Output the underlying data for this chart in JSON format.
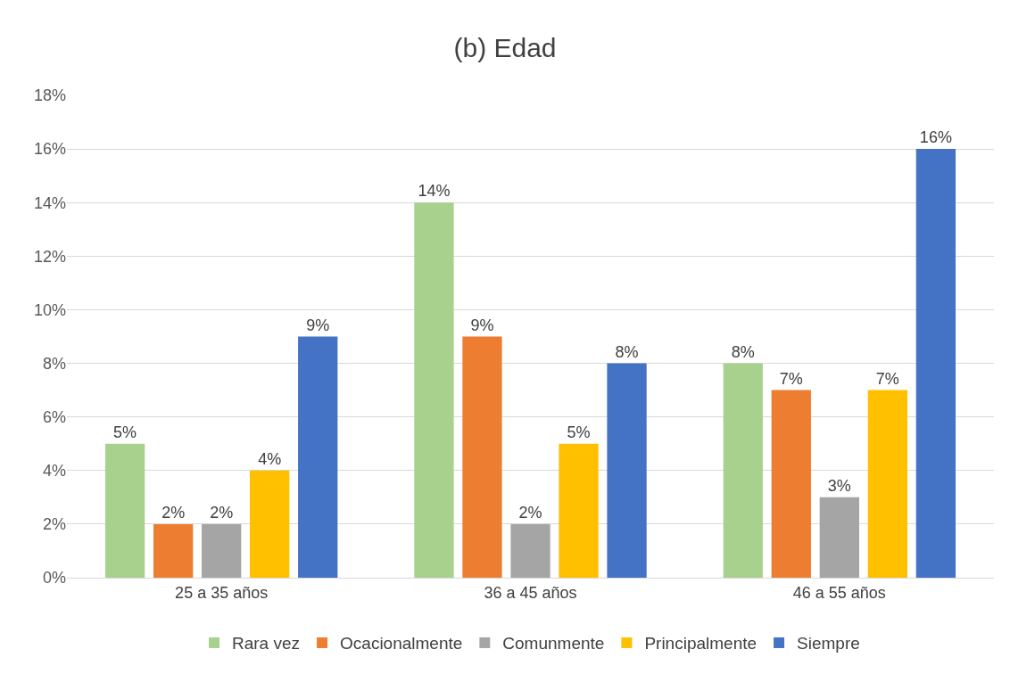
{
  "chart_data": {
    "type": "bar",
    "title": "(b) Edad",
    "categories": [
      "25 a 35 años",
      "36 a 45 años",
      "46 a 55 años"
    ],
    "series": [
      {
        "name": "Rara vez",
        "color": "#a9d18e",
        "values": [
          5,
          14,
          8
        ],
        "value_labels": [
          "5%",
          "14%",
          "8%"
        ]
      },
      {
        "name": "Ocacionalmente",
        "color": "#ed7d31",
        "values": [
          2,
          9,
          7
        ],
        "value_labels": [
          "2%",
          "9%",
          "7%"
        ]
      },
      {
        "name": "Comunmente",
        "color": "#a5a5a5",
        "values": [
          2,
          2,
          3
        ],
        "value_labels": [
          "2%",
          "2%",
          "3%"
        ]
      },
      {
        "name": "Principalmente",
        "color": "#ffc000",
        "values": [
          4,
          5,
          7
        ],
        "value_labels": [
          "4%",
          "5%",
          "7%"
        ]
      },
      {
        "name": "Siempre",
        "color": "#4472c4",
        "values": [
          9,
          8,
          16
        ],
        "value_labels": [
          "9%",
          "8%",
          "16%"
        ]
      }
    ],
    "ylim": [
      0,
      18
    ],
    "yticks": [
      {
        "value": 0,
        "label": "0%"
      },
      {
        "value": 2,
        "label": "2%"
      },
      {
        "value": 4,
        "label": "4%"
      },
      {
        "value": 6,
        "label": "6%"
      },
      {
        "value": 8,
        "label": "8%"
      },
      {
        "value": 10,
        "label": "10%"
      },
      {
        "value": 12,
        "label": "12%"
      },
      {
        "value": 14,
        "label": "14%"
      },
      {
        "value": 16,
        "label": "16%"
      },
      {
        "value": 18,
        "label": "18%"
      }
    ],
    "grid": "y",
    "legend": "bottom"
  }
}
